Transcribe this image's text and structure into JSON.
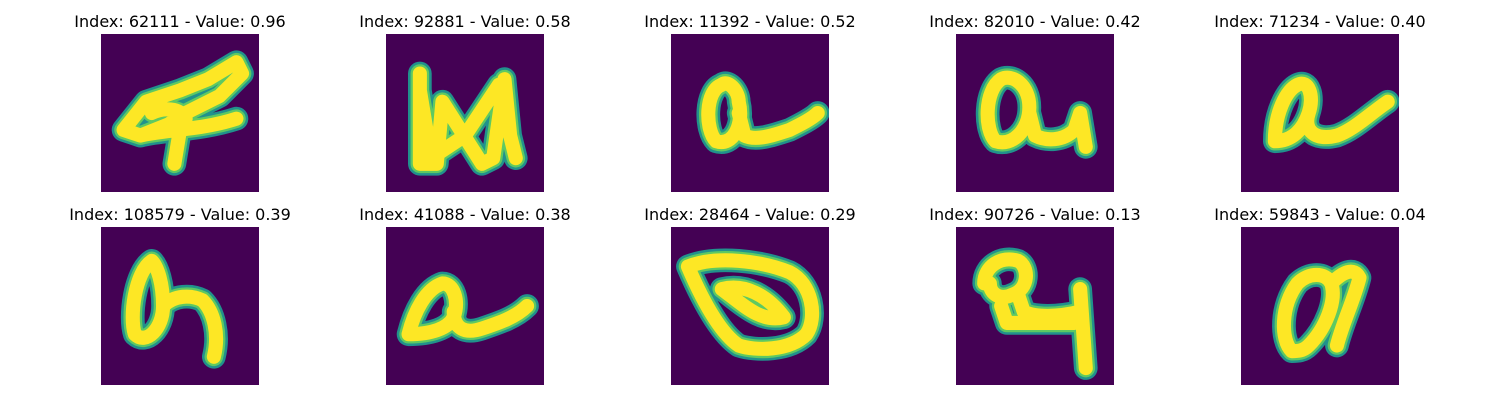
{
  "figure": {
    "panels": [
      {
        "title": "Index: 62111 - Value: 0.96",
        "glyph": "a"
      },
      {
        "title": "Index: 92881 - Value: 0.58",
        "glyph": "n"
      },
      {
        "title": "Index: 11392 - Value: 0.52",
        "glyph": "a"
      },
      {
        "title": "Index: 82010 - Value: 0.42",
        "glyph": "a"
      },
      {
        "title": "Index: 71234 - Value: 0.40",
        "glyph": "a"
      },
      {
        "title": "Index: 108579 - Value: 0.39",
        "glyph": "a"
      },
      {
        "title": "Index: 41088 - Value: 0.38",
        "glyph": "a"
      },
      {
        "title": "Index: 28464 - Value: 0.29",
        "glyph": "a"
      },
      {
        "title": "Index: 90726 - Value: 0.13",
        "glyph": "a"
      },
      {
        "title": "Index: 59843 - Value: 0.04",
        "glyph": "a"
      }
    ],
    "colors": {
      "background": "#440154",
      "stroke_edge": "#21918c",
      "stroke_mid": "#5ec962",
      "stroke_core": "#fde725"
    }
  }
}
